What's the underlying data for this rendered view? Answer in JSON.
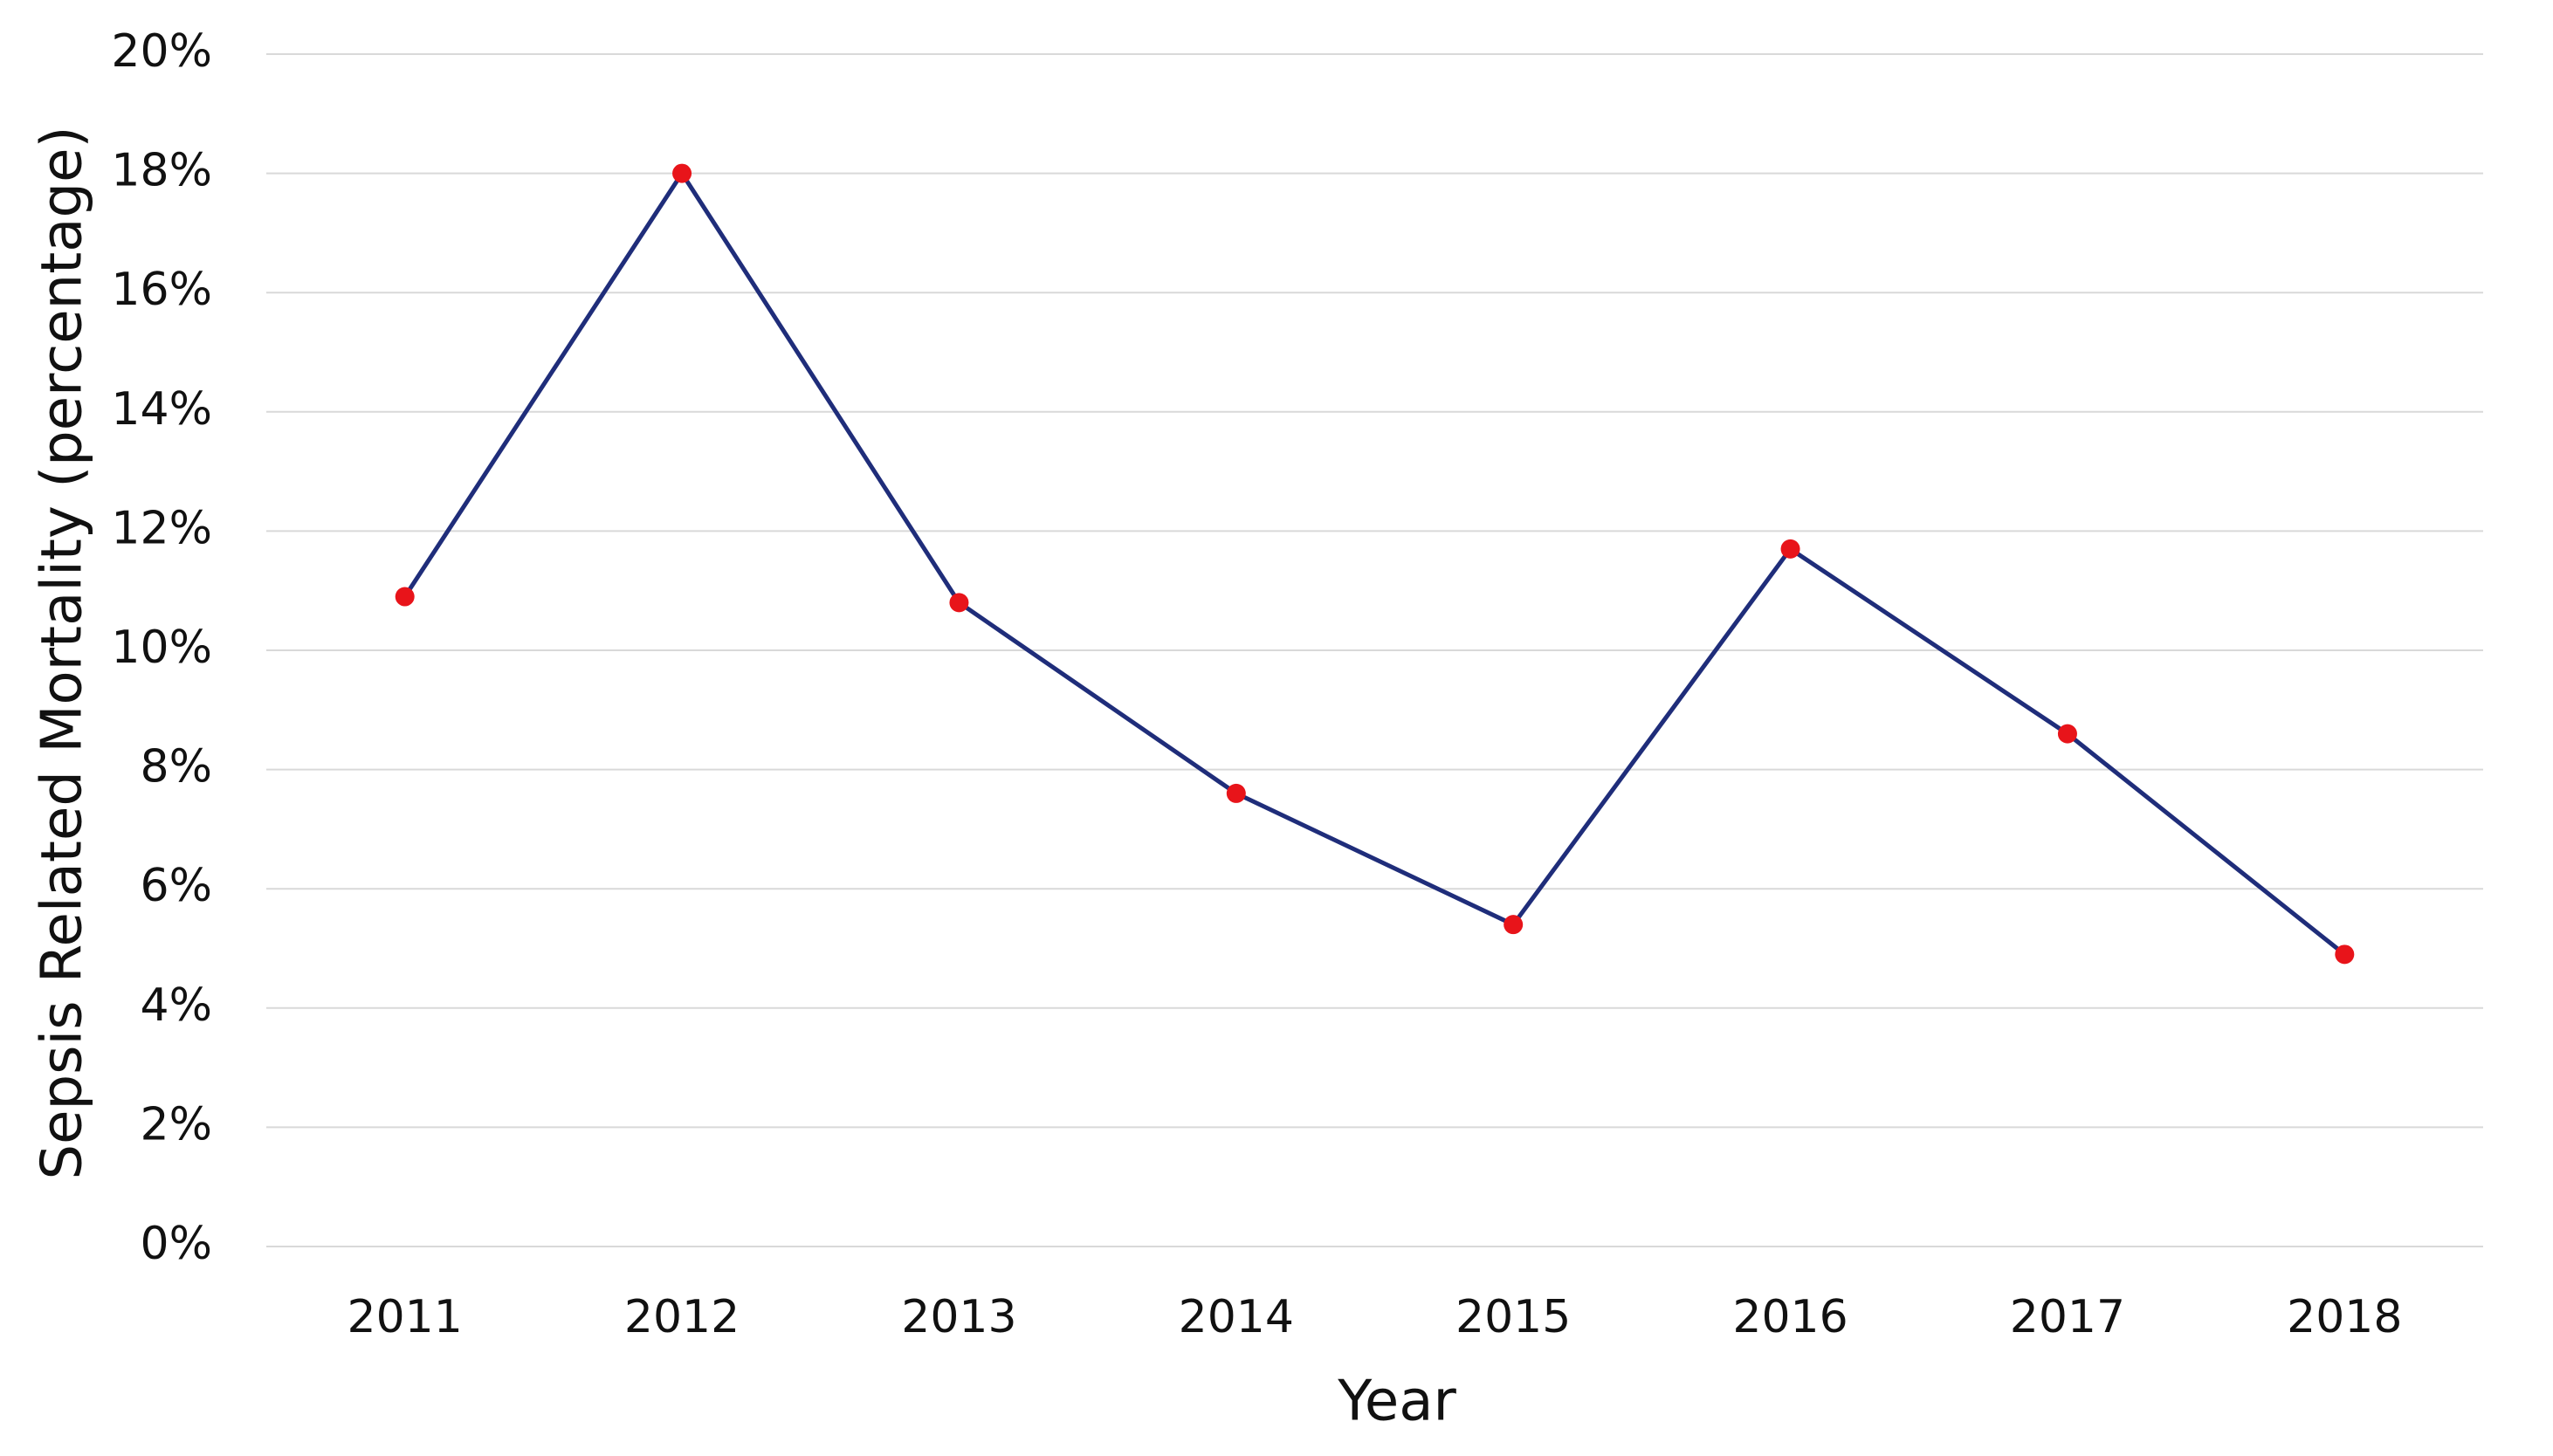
{
  "chart_data": {
    "type": "line",
    "x_label": "Year",
    "y_label": "Sepsis Related Mortality (percentage)",
    "categories": [
      "2011",
      "2012",
      "2013",
      "2014",
      "2015",
      "2016",
      "2017",
      "2018"
    ],
    "series": [
      {
        "line_color": "#1f2d7a",
        "color": "#e8141a",
        "values": [
          10.9,
          18.0,
          10.8,
          7.6,
          5.4,
          11.7,
          8.6,
          4.9
        ]
      }
    ],
    "ylim": [
      0,
      20
    ],
    "yticks": [
      {
        "value": 0,
        "label": "0%"
      },
      {
        "value": 2,
        "label": "2%"
      },
      {
        "value": 4,
        "label": "4%"
      },
      {
        "value": 6,
        "label": "6%"
      },
      {
        "value": 8,
        "label": "8%"
      },
      {
        "value": 10,
        "label": "10%"
      },
      {
        "value": 12,
        "label": "12%"
      },
      {
        "value": 14,
        "label": "14%"
      },
      {
        "value": 16,
        "label": "16%"
      },
      {
        "value": 18,
        "label": "18%"
      },
      {
        "value": 20,
        "label": "20%"
      }
    ],
    "grid": true
  }
}
